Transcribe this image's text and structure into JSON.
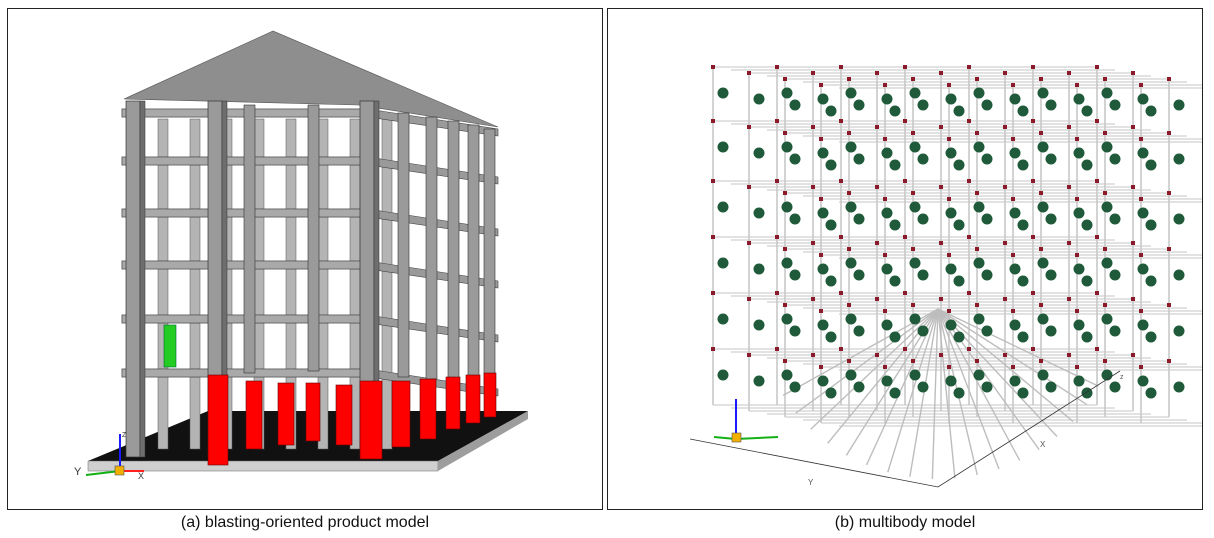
{
  "figure": {
    "panels": [
      {
        "id": "a",
        "caption": "(a) blasting-oriented product model",
        "axis_labels": {
          "y": "Y",
          "x": "X",
          "z": "Z"
        }
      },
      {
        "id": "b",
        "caption": "(b) multibody model",
        "axis_labels": {
          "x_dim": "X",
          "y_dim": "Y",
          "z_dim": "z"
        }
      }
    ],
    "colors": {
      "concrete": "#9a9a9a",
      "concrete_dark": "#6e6e6e",
      "roof": "#8c8c8c",
      "blasted_columns": "#ff0000",
      "highlight_column": "#22cc22",
      "base_slab": "#111111",
      "link_bars": "#d9d9d9",
      "mass_spheres": "#1f5a3a",
      "joints": "#8b1a2a"
    }
  }
}
